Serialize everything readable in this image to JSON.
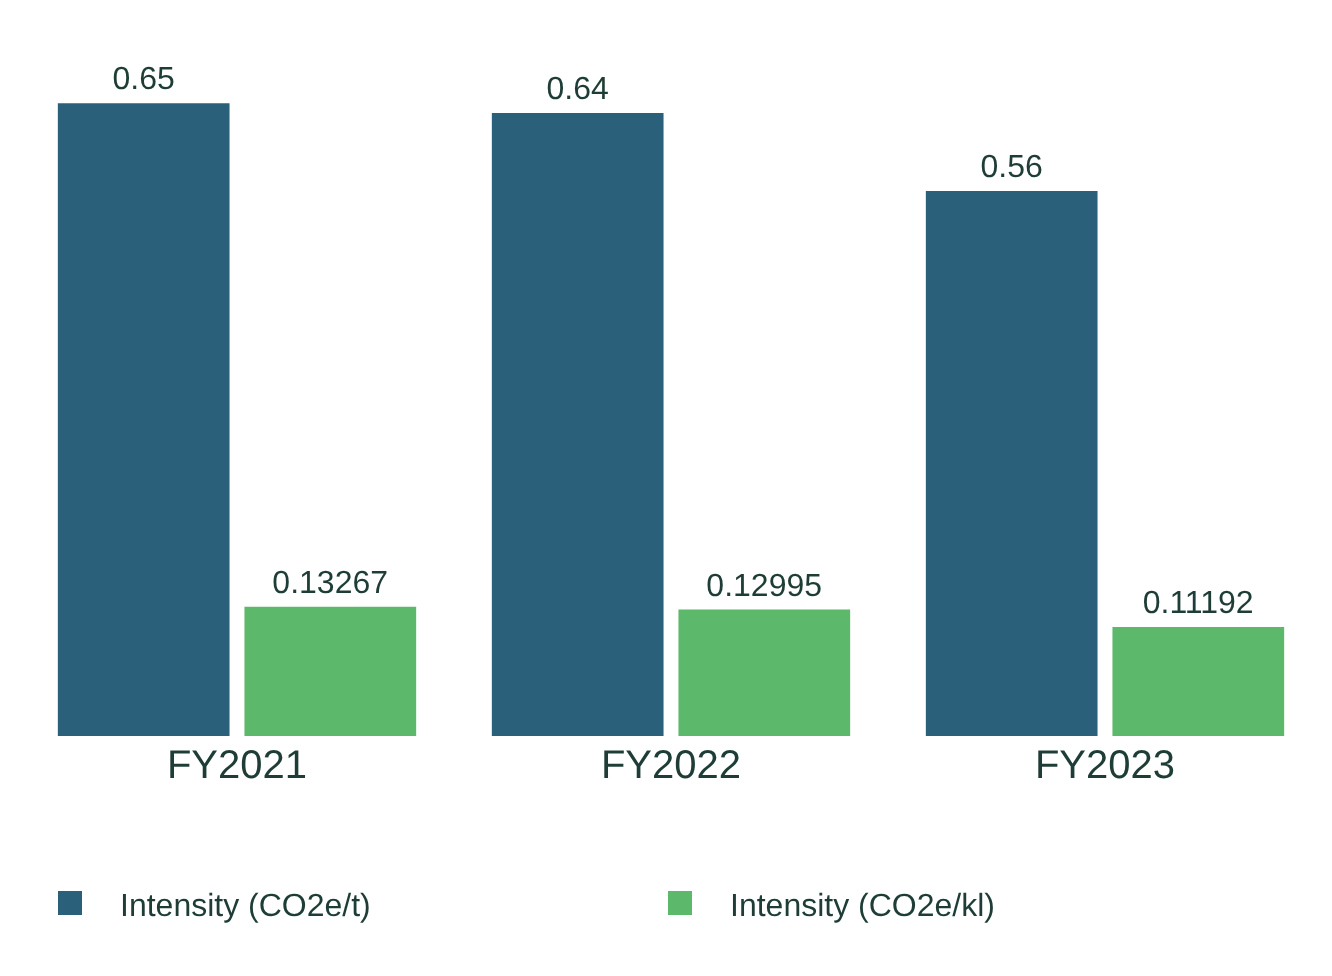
{
  "chart_data": {
    "type": "bar",
    "categories": [
      "FY2021",
      "FY2022",
      "FY2023"
    ],
    "series": [
      {
        "name": "Intensity (CO2e/t)",
        "color": "#2a6079",
        "values": [
          0.65,
          0.64,
          0.56
        ]
      },
      {
        "name": "Intensity (CO2e/kl)",
        "color": "#5cb86a",
        "values": [
          0.13267,
          0.12995,
          0.11192
        ]
      }
    ],
    "data_labels": true,
    "legend": "bottom"
  }
}
